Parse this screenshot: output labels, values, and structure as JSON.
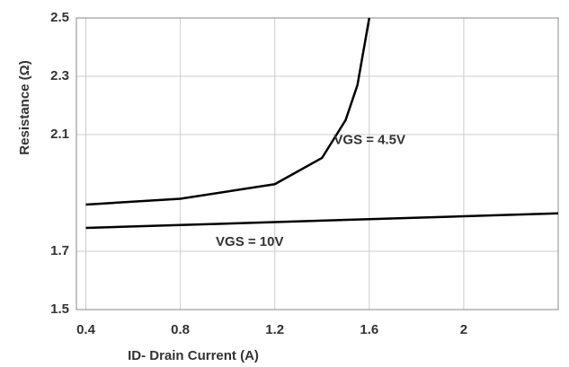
{
  "chart_data": {
    "type": "line",
    "xlabel": "ID- Drain Current (A)",
    "ylabel": "Resistance (Ω)",
    "xlim": [
      0.36,
      2.4
    ],
    "xticks": [
      0.4,
      0.8,
      1.2,
      1.6,
      2
    ],
    "ylim": [
      1.5,
      2.5
    ],
    "yticks": [
      1.5,
      1.7,
      2.1,
      2.3,
      2.5
    ],
    "grid": true,
    "series": [
      {
        "name": "VGS = 4.5V",
        "color": "#000000",
        "x": [
          0.4,
          0.8,
          1.2,
          1.4,
          1.5,
          1.55,
          1.6
        ],
        "values": [
          1.86,
          1.88,
          1.93,
          2.02,
          2.15,
          2.27,
          2.5
        ]
      },
      {
        "name": "VGS = 10V",
        "color": "#000000",
        "x": [
          0.4,
          0.8,
          1.2,
          1.6,
          2,
          2.4
        ],
        "values": [
          1.78,
          1.79,
          1.8,
          1.81,
          1.82,
          1.83
        ]
      }
    ]
  }
}
